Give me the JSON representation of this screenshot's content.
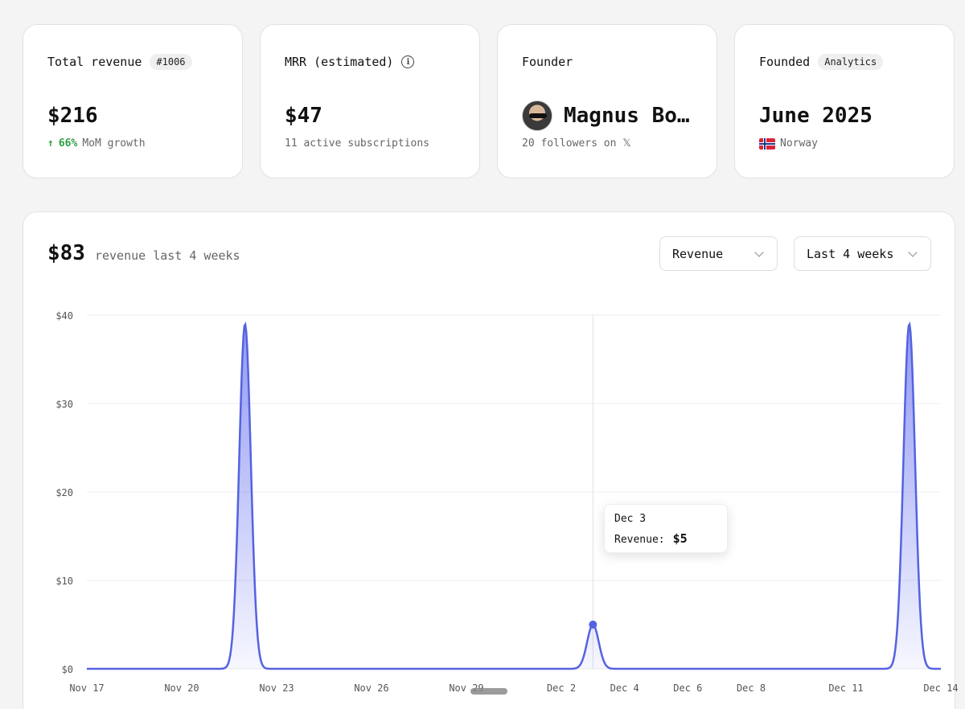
{
  "stats": {
    "total_revenue": {
      "label": "Total revenue",
      "badge": "#1006",
      "value": "$216",
      "growth": "66%",
      "growth_suffix": "MoM growth"
    },
    "mrr": {
      "label": "MRR (estimated)",
      "value": "$47",
      "sub": "11 active subscriptions"
    },
    "founder": {
      "label": "Founder",
      "name": "Magnus Bo…",
      "sub": "20 followers on 𝕏"
    },
    "founded": {
      "label": "Founded",
      "badge": "Analytics",
      "value": "June 2025",
      "country": "Norway"
    }
  },
  "chart_header": {
    "total": "$83",
    "caption": "revenue last 4 weeks"
  },
  "selects": {
    "metric": "Revenue",
    "range": "Last 4 weeks"
  },
  "tooltip": {
    "date": "Dec 3",
    "label": "Revenue:",
    "value": "$5"
  },
  "colors": {
    "accent": "#5562e0",
    "growth": "#2e9e44"
  },
  "chart_data": {
    "type": "area",
    "x": [
      "Nov 17",
      "Nov 18",
      "Nov 19",
      "Nov 20",
      "Nov 21",
      "Nov 22",
      "Nov 23",
      "Nov 24",
      "Nov 25",
      "Nov 26",
      "Nov 27",
      "Nov 28",
      "Nov 29",
      "Nov 30",
      "Dec 1",
      "Dec 2",
      "Dec 3",
      "Dec 4",
      "Dec 5",
      "Dec 6",
      "Dec 7",
      "Dec 8",
      "Dec 9",
      "Dec 10",
      "Dec 11",
      "Dec 12",
      "Dec 13",
      "Dec 14"
    ],
    "series": [
      {
        "values": [
          0,
          0,
          0,
          0,
          0,
          39,
          0,
          0,
          0,
          0,
          0,
          0,
          0,
          0,
          0,
          0,
          5,
          0,
          0,
          0,
          0,
          0,
          0,
          0,
          0,
          0,
          39,
          0
        ]
      }
    ],
    "x_ticks": [
      "Nov 17",
      "Nov 20",
      "Nov 23",
      "Nov 26",
      "Nov 29",
      "Dec 2",
      "Dec 4",
      "Dec 6",
      "Dec 8",
      "Dec 11",
      "Dec 14"
    ],
    "y_ticks": [
      "$0",
      "$10",
      "$20",
      "$30",
      "$40"
    ],
    "ylim": [
      0,
      40
    ],
    "grid": true,
    "highlight": "Dec 3"
  }
}
